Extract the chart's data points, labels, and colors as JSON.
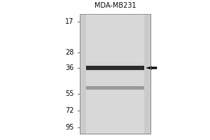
{
  "title": "MDA-MB231",
  "mw_markers": [
    95,
    72,
    55,
    36,
    28,
    17
  ],
  "arrow_at_kda": 36,
  "fig_bg_color": "#ffffff",
  "gel_bg_color": "#c8c8c8",
  "lane_bg_color": "#d0d0d0",
  "band_36_kda": 36,
  "band_55_kda": 50,
  "title_fontsize": 7,
  "marker_fontsize": 7,
  "fig_width": 3.0,
  "fig_height": 2.0,
  "dpi": 100
}
